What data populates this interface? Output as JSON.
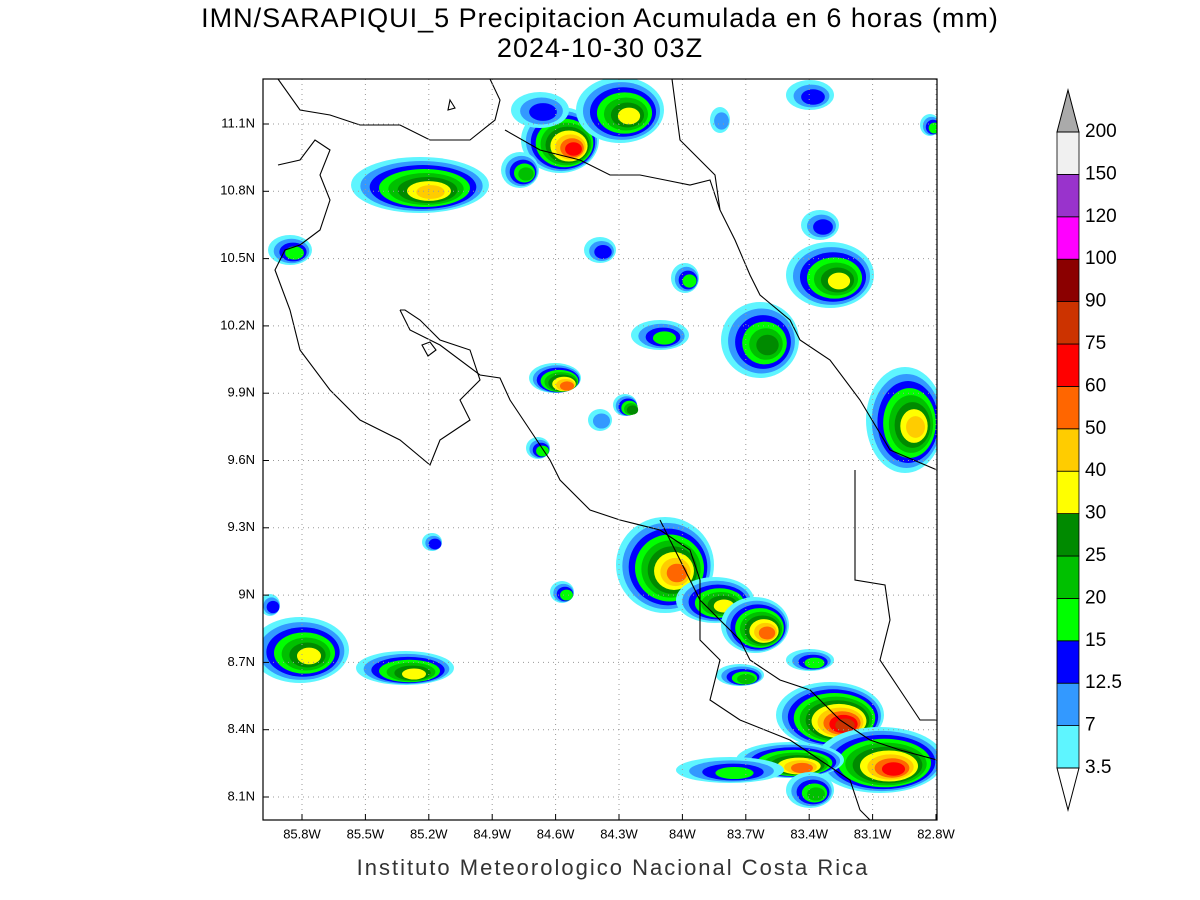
{
  "header": {
    "title": "IMN/SARAPIQUI_5 Precipitacion Acumulada en 6 horas (mm)",
    "subtitle": "2024-10-30 03Z"
  },
  "map": {
    "lat_labels": [
      "11.1N",
      "10.8N",
      "10.5N",
      "10.2N",
      "9.9N",
      "9.6N",
      "9.3N",
      "9N",
      "8.7N",
      "8.4N",
      "8.1N"
    ],
    "lon_labels": [
      "85.8W",
      "85.5W",
      "85.2W",
      "84.9W",
      "84.6W",
      "84.3W",
      "84W",
      "83.7W",
      "83.4W",
      "83.1W",
      "82.8W"
    ],
    "grid": true
  },
  "colorbar": {
    "labels": [
      "3.5",
      "7",
      "12.5",
      "15",
      "20",
      "25",
      "30",
      "40",
      "50",
      "60",
      "75",
      "90",
      "100",
      "120",
      "150",
      "200"
    ],
    "colors": [
      "#5ef5ff",
      "#3399ff",
      "#0000ff",
      "#00ff00",
      "#00c000",
      "#008a00",
      "#ffff00",
      "#ffcc00",
      "#ff6600",
      "#ff0000",
      "#cc3300",
      "#8b0000",
      "#ff00ff",
      "#9933cc",
      "#f0f0f0"
    ],
    "over_color": "#aaaaaa",
    "under_color": "#ffffff"
  },
  "footer": {
    "text": "Instituto Meteorologico Nacional Costa Rica"
  }
}
